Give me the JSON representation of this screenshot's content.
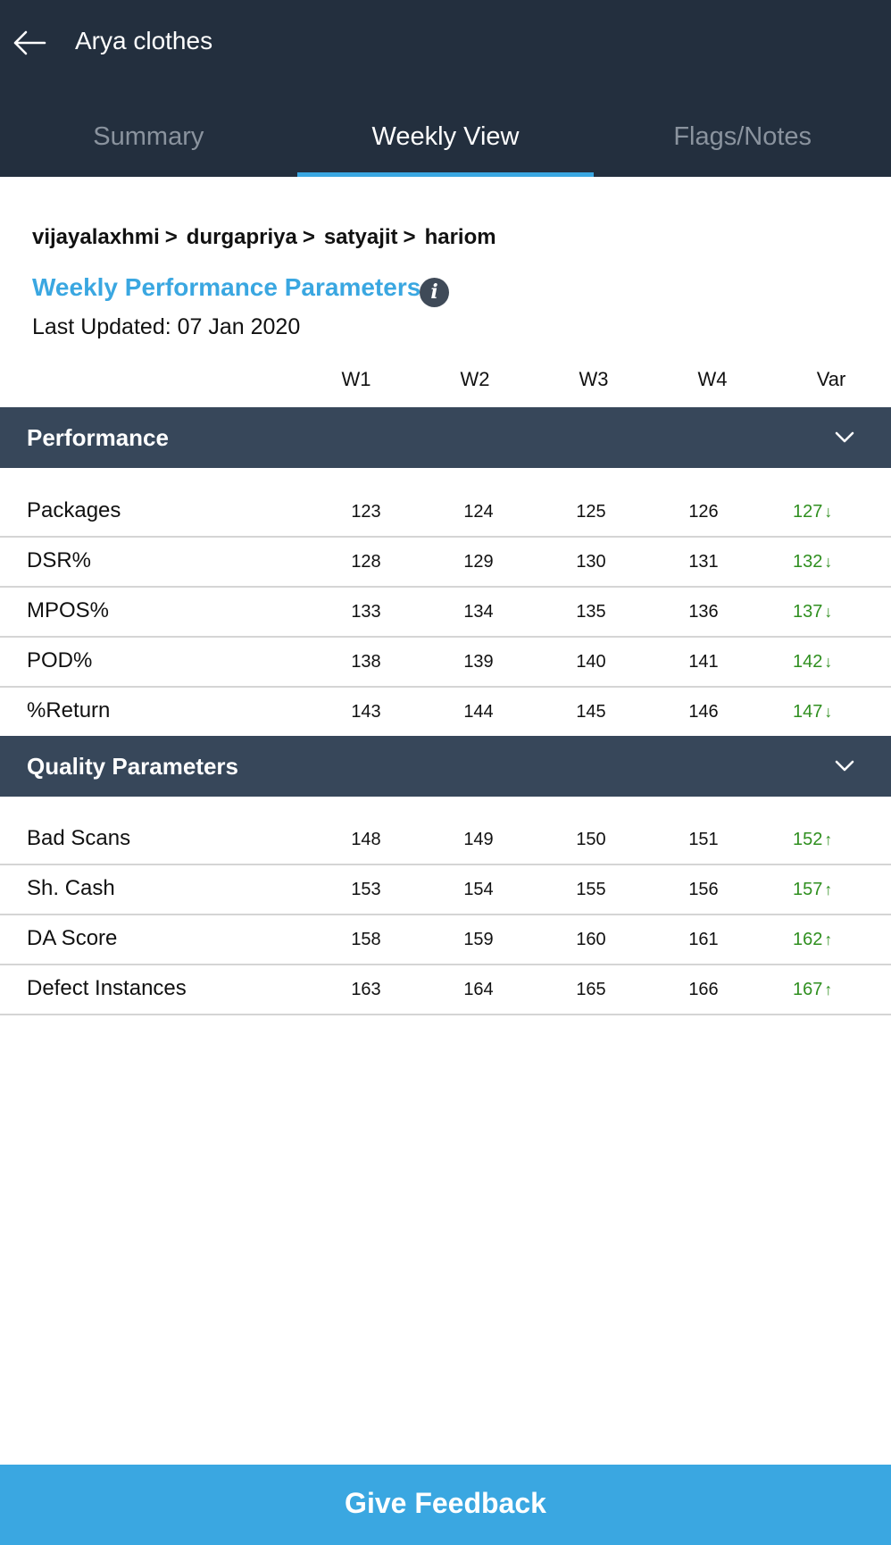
{
  "header": {
    "title": "Arya clothes",
    "back_icon": "back-arrow-icon"
  },
  "tabs": [
    {
      "label": "Summary",
      "active": false
    },
    {
      "label": "Weekly View",
      "active": true
    },
    {
      "label": "Flags/Notes",
      "active": false
    }
  ],
  "breadcrumb": {
    "items": [
      "vijayalaxhmi",
      "durgapriya",
      "satyajit",
      "hariom"
    ],
    "separator": ">"
  },
  "section": {
    "title": "Weekly Performance Parameters",
    "info_icon_glyph": "i",
    "last_updated": "Last Updated: 07 Jan 2020"
  },
  "columns": [
    "W1",
    "W2",
    "W3",
    "W4",
    "Var"
  ],
  "groups": [
    {
      "title": "Performance",
      "rows": [
        {
          "label": "Packages",
          "values": [
            "123",
            "124",
            "125",
            "126"
          ],
          "var": "127",
          "trend": "down"
        },
        {
          "label": "DSR%",
          "values": [
            "128",
            "129",
            "130",
            "131"
          ],
          "var": "132",
          "trend": "down"
        },
        {
          "label": "MPOS%",
          "values": [
            "133",
            "134",
            "135",
            "136"
          ],
          "var": "137",
          "trend": "down"
        },
        {
          "label": "POD%",
          "values": [
            "138",
            "139",
            "140",
            "141"
          ],
          "var": "142",
          "trend": "down"
        },
        {
          "label": "%Return",
          "values": [
            "143",
            "144",
            "145",
            "146"
          ],
          "var": "147",
          "trend": "down"
        }
      ]
    },
    {
      "title": "Quality Parameters",
      "rows": [
        {
          "label": "Bad Scans",
          "values": [
            "148",
            "149",
            "150",
            "151"
          ],
          "var": "152",
          "trend": "up"
        },
        {
          "label": "Sh. Cash",
          "values": [
            "153",
            "154",
            "155",
            "156"
          ],
          "var": "157",
          "trend": "up"
        },
        {
          "label": "DA Score",
          "values": [
            "158",
            "159",
            "160",
            "161"
          ],
          "var": "162",
          "trend": "up"
        },
        {
          "label": "Defect Instances",
          "values": [
            "163",
            "164",
            "165",
            "166"
          ],
          "var": "167",
          "trend": "up"
        }
      ]
    }
  ],
  "footer": {
    "button_label": "Give Feedback"
  },
  "colors": {
    "appbar": "#232f3e",
    "accent": "#3aa7e1",
    "group_header": "#37475a",
    "trend": "#2f8f1f"
  }
}
